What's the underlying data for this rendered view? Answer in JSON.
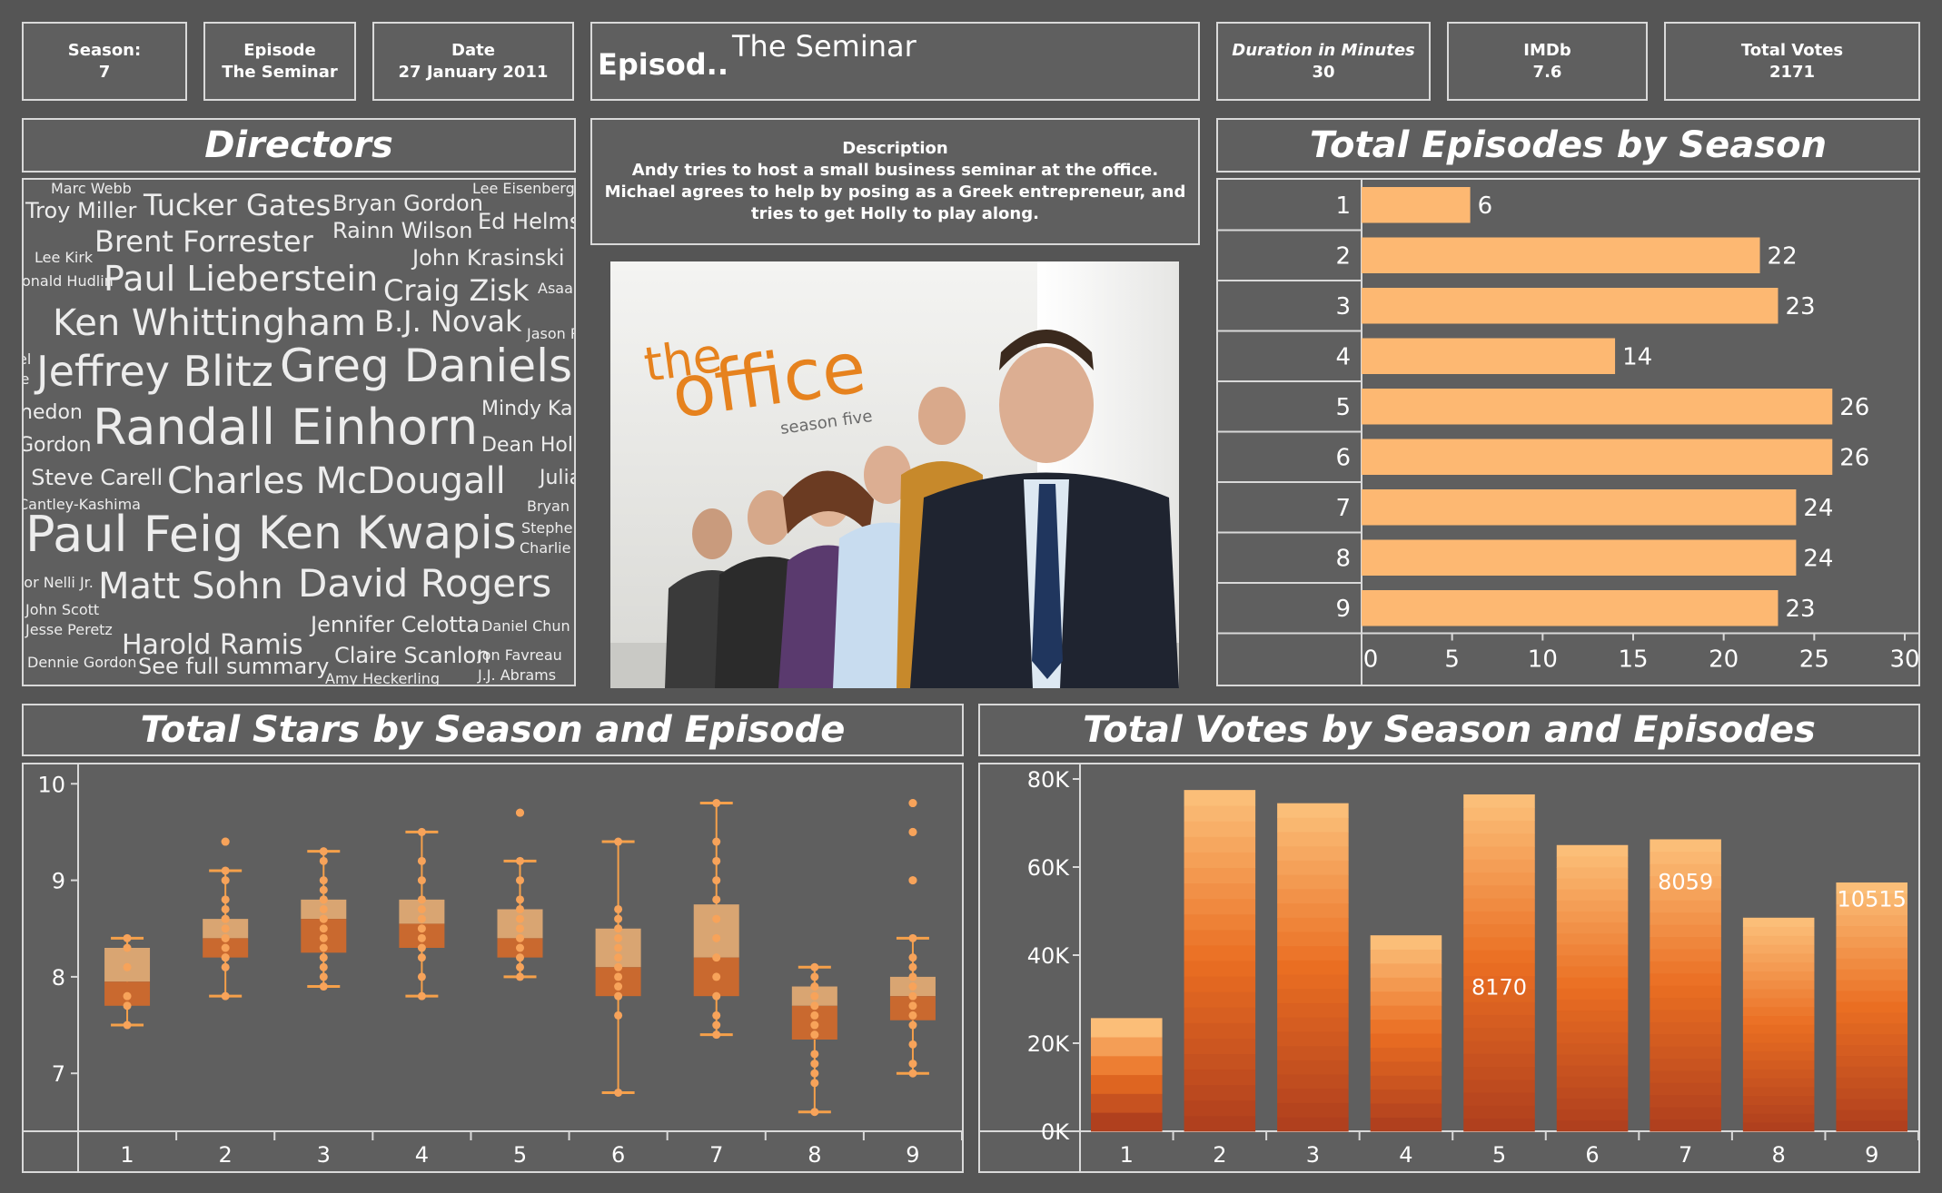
{
  "kpis": {
    "season": {
      "label": "Season:",
      "value": "7"
    },
    "episode": {
      "label": "Episode",
      "value": "The Seminar"
    },
    "date": {
      "label": "Date",
      "value": "27 January 2011"
    },
    "duration": {
      "label": "Duration in Minutes",
      "value": "30"
    },
    "imdb": {
      "label": "IMDb",
      "value": "7.6"
    },
    "votes": {
      "label": "Total Votes",
      "value": "2171"
    }
  },
  "episode_box": {
    "label": "Episod..",
    "name": "The Seminar"
  },
  "description": {
    "title": "Description",
    "text": "Andy tries to host a small business seminar at the office. Michael agrees to help by posing as a Greek entrepreneur, and tries to get Holly to play along."
  },
  "poster": {
    "logo_the": "the",
    "logo_office": "office",
    "logo_season": "season five"
  },
  "directors": {
    "title": "Directors",
    "words": [
      {
        "t": "Marc Webb",
        "s": 16
      },
      {
        "t": "Troy Miller",
        "s": 24
      },
      {
        "t": "Tucker Gates",
        "s": 32
      },
      {
        "t": "Bryan Gordon",
        "s": 24
      },
      {
        "t": "Lee Eisenberg",
        "s": 16
      },
      {
        "t": "Brent Forrester",
        "s": 32
      },
      {
        "t": "Rainn Wilson",
        "s": 24
      },
      {
        "t": "Ed Helms",
        "s": 24
      },
      {
        "t": "Lee Kirk",
        "s": 16
      },
      {
        "t": "John Krasinski",
        "s": 24
      },
      {
        "t": "Paul Lieberstein",
        "s": 38
      },
      {
        "t": "onald Hudlin",
        "s": 16
      },
      {
        "t": "Craig Zisk",
        "s": 32
      },
      {
        "t": "Asaa",
        "s": 16
      },
      {
        "t": "Ken Whittingham",
        "s": 40
      },
      {
        "t": "B.J. Novak",
        "s": 32
      },
      {
        "t": "Jason R",
        "s": 16
      },
      {
        "t": "el",
        "s": 16
      },
      {
        "t": "Jeffrey Blitz",
        "s": 46
      },
      {
        "t": "Greg Daniels",
        "s": 50
      },
      {
        "t": "le",
        "s": 16
      },
      {
        "t": "hedon",
        "s": 22
      },
      {
        "t": "Mindy Ka",
        "s": 22
      },
      {
        "t": "Randall Einhorn",
        "s": 54
      },
      {
        "t": "Gordon",
        "s": 22
      },
      {
        "t": "Dean Hol",
        "s": 22
      },
      {
        "t": "' Steve Carell",
        "s": 24
      },
      {
        "t": "Charles McDougall",
        "s": 40
      },
      {
        "t": "Julian F",
        "s": 22
      },
      {
        "t": "Cantley-Kashima",
        "s": 16
      },
      {
        "t": "Bryan",
        "s": 16
      },
      {
        "t": "Paul Feig",
        "s": 54
      },
      {
        "t": "Ken Kwapis",
        "s": 50
      },
      {
        "t": "Stephe",
        "s": 16
      },
      {
        "t": "Charlie",
        "s": 16
      },
      {
        "t": "tor Nelli Jr.",
        "s": 16
      },
      {
        "t": "Matt Sohn",
        "s": 40
      },
      {
        "t": "David Rogers",
        "s": 42
      },
      {
        "t": "John Scott",
        "s": 16
      },
      {
        "t": "Jesse Peretz",
        "s": 16
      },
      {
        "t": "Jennifer Celotta",
        "s": 24
      },
      {
        "t": "Daniel Chun",
        "s": 16
      },
      {
        "t": "Harold Ramis",
        "s": 30
      },
      {
        "t": "Claire Scanlon",
        "s": 24
      },
      {
        "t": "Jon Favreau",
        "s": 16
      },
      {
        "t": "Dennie Gordon",
        "s": 16
      },
      {
        "t": "See full summary",
        "s": 24
      },
      {
        "t": "Amy Heckerling",
        "s": 16
      },
      {
        "t": "J.J. Abrams",
        "s": 16
      }
    ]
  },
  "chart_data": [
    {
      "id": "episodes",
      "type": "bar",
      "orientation": "horizontal",
      "title": "Total Episodes by Season",
      "categories": [
        "1",
        "2",
        "3",
        "4",
        "5",
        "6",
        "7",
        "8",
        "9"
      ],
      "values": [
        6,
        22,
        23,
        14,
        26,
        26,
        24,
        24,
        23
      ],
      "xlim": [
        0,
        30
      ],
      "xticks": [
        0,
        5,
        10,
        15,
        20,
        25,
        30
      ],
      "bar_color": "#fdb872"
    },
    {
      "id": "stars",
      "type": "box",
      "title": "Total Stars by Season and Episode",
      "categories": [
        "1",
        "2",
        "3",
        "4",
        "5",
        "6",
        "7",
        "8",
        "9"
      ],
      "ylim": [
        6.4,
        10.2
      ],
      "yticks": [
        7,
        8,
        9,
        10
      ],
      "boxes": [
        {
          "min": 7.5,
          "q1": 7.7,
          "median": 7.95,
          "q3": 8.3,
          "max": 8.4,
          "points": [
            7.5,
            7.7,
            7.8,
            8.1,
            8.3,
            8.4
          ]
        },
        {
          "min": 7.8,
          "q1": 8.2,
          "median": 8.4,
          "q3": 8.6,
          "max": 9.1,
          "outliers": [
            9.4
          ],
          "points": [
            7.8,
            8.1,
            8.2,
            8.2,
            8.3,
            8.4,
            8.4,
            8.5,
            8.6,
            8.6,
            8.7,
            8.8,
            9.0,
            9.1,
            9.4
          ]
        },
        {
          "min": 7.9,
          "q1": 8.25,
          "median": 8.6,
          "q3": 8.8,
          "max": 9.3,
          "points": [
            7.9,
            8.0,
            8.1,
            8.2,
            8.3,
            8.4,
            8.5,
            8.6,
            8.6,
            8.7,
            8.8,
            8.8,
            8.9,
            9.0,
            9.2,
            9.3
          ]
        },
        {
          "min": 7.8,
          "q1": 8.3,
          "median": 8.55,
          "q3": 8.8,
          "max": 9.5,
          "points": [
            7.8,
            8.0,
            8.2,
            8.3,
            8.4,
            8.5,
            8.6,
            8.7,
            8.8,
            9.0,
            9.2,
            9.5
          ]
        },
        {
          "min": 8.0,
          "q1": 8.2,
          "median": 8.4,
          "q3": 8.7,
          "max": 9.2,
          "outliers": [
            9.7
          ],
          "points": [
            8.0,
            8.1,
            8.2,
            8.3,
            8.4,
            8.5,
            8.6,
            8.7,
            8.8,
            9.0,
            9.2,
            9.7
          ]
        },
        {
          "min": 6.8,
          "q1": 7.8,
          "median": 8.1,
          "q3": 8.5,
          "max": 9.4,
          "points": [
            6.8,
            7.6,
            7.8,
            7.9,
            8.0,
            8.1,
            8.2,
            8.3,
            8.4,
            8.5,
            8.6,
            8.7,
            9.4
          ]
        },
        {
          "min": 7.4,
          "q1": 7.8,
          "median": 8.2,
          "q3": 8.75,
          "max": 9.8,
          "points": [
            7.4,
            7.5,
            7.6,
            7.8,
            8.0,
            8.2,
            8.4,
            8.6,
            8.8,
            9.0,
            9.2,
            9.4,
            9.8
          ]
        },
        {
          "min": 6.6,
          "q1": 7.35,
          "median": 7.7,
          "q3": 7.9,
          "max": 8.1,
          "points": [
            6.6,
            6.9,
            7.0,
            7.1,
            7.2,
            7.4,
            7.5,
            7.6,
            7.7,
            7.8,
            7.9,
            8.0,
            8.1
          ]
        },
        {
          "min": 7.0,
          "q1": 7.55,
          "median": 7.8,
          "q3": 8.0,
          "max": 8.4,
          "outliers": [
            9.0,
            9.5,
            9.8
          ],
          "points": [
            7.0,
            7.1,
            7.3,
            7.5,
            7.6,
            7.7,
            7.8,
            7.9,
            8.0,
            8.1,
            8.2,
            8.4,
            9.0,
            9.5,
            9.8
          ]
        }
      ]
    },
    {
      "id": "votes",
      "type": "stacked-bar",
      "title": "Total Votes by Season and Episodes",
      "categories": [
        "1",
        "2",
        "3",
        "4",
        "5",
        "6",
        "7",
        "8",
        "9"
      ],
      "totals": [
        25700,
        77500,
        74500,
        44500,
        76500,
        65000,
        66300,
        48500,
        56500
      ],
      "episode_counts": [
        6,
        22,
        23,
        14,
        26,
        26,
        24,
        24,
        23
      ],
      "ylim": [
        0,
        80000
      ],
      "yticks": [
        {
          "v": 0,
          "l": "0K"
        },
        {
          "v": 20000,
          "l": "20K"
        },
        {
          "v": 40000,
          "l": "40K"
        },
        {
          "v": 60000,
          "l": "60K"
        },
        {
          "v": 80000,
          "l": "80K"
        }
      ],
      "annotations": [
        {
          "category": "5",
          "label": "8170"
        },
        {
          "category": "7",
          "label": "8059"
        },
        {
          "category": "9",
          "label": "10515"
        }
      ]
    }
  ]
}
